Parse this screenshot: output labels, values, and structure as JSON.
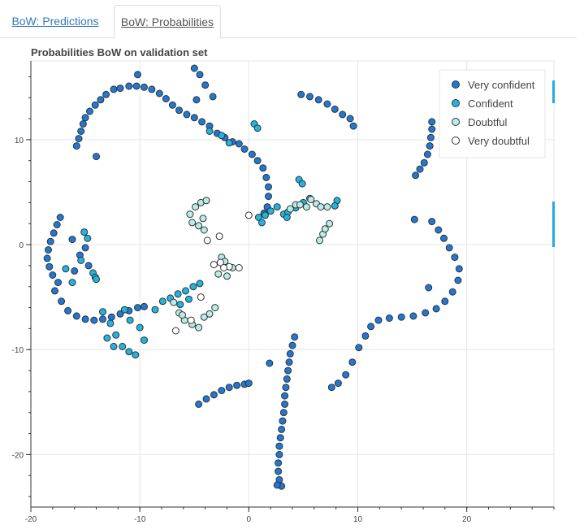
{
  "tabs": [
    {
      "label": "BoW: Predictions",
      "active": false
    },
    {
      "label": "BoW: Probabilities",
      "active": true
    }
  ],
  "chart_data": {
    "type": "scatter",
    "title": "Probabilities BoW on validation set",
    "xlabel": "",
    "ylabel": "",
    "xlim": [
      -20,
      28
    ],
    "ylim": [
      -25,
      17.5
    ],
    "xticks": [
      -20,
      -10,
      0,
      10,
      20
    ],
    "yticks": [
      -20,
      -10,
      0,
      10
    ],
    "grid": true,
    "legend_position": "top-right",
    "series": [
      {
        "name": "Very confident",
        "color": "#1f78d4",
        "points": [
          [
            -15.8,
            9.4
          ],
          [
            -15.6,
            10.1
          ],
          [
            -15.4,
            10.8
          ],
          [
            -15.2,
            11.5
          ],
          [
            -15.0,
            12.1
          ],
          [
            -14.6,
            12.7
          ],
          [
            -14.1,
            13.3
          ],
          [
            -13.6,
            13.8
          ],
          [
            -13.1,
            14.3
          ],
          [
            -12.4,
            14.8
          ],
          [
            -11.8,
            14.9
          ],
          [
            -11.0,
            15.1
          ],
          [
            -10.3,
            15.1
          ],
          [
            -9.6,
            15.0
          ],
          [
            -8.9,
            14.8
          ],
          [
            -8.2,
            14.4
          ],
          [
            -7.6,
            13.9
          ],
          [
            -7.0,
            13.3
          ],
          [
            -6.4,
            12.8
          ],
          [
            -5.7,
            12.4
          ],
          [
            -5.0,
            12.1
          ],
          [
            -4.3,
            11.7
          ],
          [
            -3.6,
            11.3
          ],
          [
            -2.9,
            10.6
          ],
          [
            -2.2,
            10.2
          ],
          [
            -1.5,
            9.8
          ],
          [
            -0.9,
            9.6
          ],
          [
            -0.4,
            9.1
          ],
          [
            0.3,
            8.6
          ],
          [
            0.8,
            8.0
          ],
          [
            1.3,
            7.3
          ],
          [
            1.6,
            6.4
          ],
          [
            1.8,
            5.5
          ],
          [
            1.8,
            4.6
          ],
          [
            1.7,
            3.6
          ],
          [
            1.4,
            3.0
          ],
          [
            -14.0,
            8.4
          ],
          [
            -10.2,
            16.2
          ],
          [
            -5.0,
            16.8
          ],
          [
            -4.5,
            16.2
          ],
          [
            -4.0,
            15.2
          ],
          [
            -3.3,
            14.1
          ],
          [
            -4.8,
            13.8
          ],
          [
            4.8,
            14.3
          ],
          [
            5.6,
            14.1
          ],
          [
            6.4,
            13.8
          ],
          [
            7.2,
            13.4
          ],
          [
            7.9,
            12.9
          ],
          [
            8.6,
            12.4
          ],
          [
            9.3,
            12.0
          ],
          [
            9.6,
            11.3
          ],
          [
            15.3,
            6.6
          ],
          [
            15.7,
            7.2
          ],
          [
            16.1,
            7.8
          ],
          [
            16.4,
            8.6
          ],
          [
            16.6,
            9.4
          ],
          [
            16.7,
            10.2
          ],
          [
            16.8,
            11.0
          ],
          [
            16.8,
            11.7
          ],
          [
            -17.3,
            2.6
          ],
          [
            -17.6,
            1.9
          ],
          [
            -17.9,
            1.1
          ],
          [
            -18.2,
            0.3
          ],
          [
            -18.4,
            -0.5
          ],
          [
            -18.5,
            -1.3
          ],
          [
            -18.3,
            -2.1
          ],
          [
            -18.0,
            -2.9
          ],
          [
            -17.5,
            -3.6
          ],
          [
            -17.8,
            -4.4
          ],
          [
            -17.2,
            -5.4
          ],
          [
            -16.6,
            -6.3
          ],
          [
            -15.8,
            -6.8
          ],
          [
            -15.0,
            -7.1
          ],
          [
            -14.2,
            -7.2
          ],
          [
            -13.4,
            -7.1
          ],
          [
            -12.6,
            -6.9
          ],
          [
            -11.8,
            -6.6
          ],
          [
            -11.0,
            -6.3
          ],
          [
            -10.2,
            -6.0
          ],
          [
            -9.6,
            -5.9
          ],
          [
            -16.2,
            0.5
          ],
          [
            -15.5,
            -1.0
          ],
          [
            -16.0,
            -2.5
          ],
          [
            -15.0,
            -0.3
          ],
          [
            -14.7,
            -2.0
          ],
          [
            15.2,
            2.4
          ],
          [
            16.8,
            2.2
          ],
          [
            17.4,
            1.4
          ],
          [
            17.9,
            0.6
          ],
          [
            18.4,
            -0.3
          ],
          [
            18.9,
            -1.2
          ],
          [
            19.3,
            -2.3
          ],
          [
            19.2,
            -3.4
          ],
          [
            18.7,
            -4.5
          ],
          [
            18.0,
            -5.4
          ],
          [
            17.2,
            -6.1
          ],
          [
            16.2,
            -6.5
          ],
          [
            15.1,
            -6.8
          ],
          [
            14.0,
            -6.9
          ],
          [
            12.9,
            -7.0
          ],
          [
            11.9,
            -7.2
          ],
          [
            11.2,
            -7.8
          ],
          [
            10.7,
            -8.7
          ],
          [
            10.1,
            -9.8
          ],
          [
            9.5,
            -11.2
          ],
          [
            8.9,
            -12.4
          ],
          [
            8.2,
            -13.2
          ],
          [
            7.6,
            -13.6
          ],
          [
            16.5,
            -4.1
          ],
          [
            -4.6,
            -15.2
          ],
          [
            -3.9,
            -14.7
          ],
          [
            -3.2,
            -14.3
          ],
          [
            -2.5,
            -13.9
          ],
          [
            -1.8,
            -13.6
          ],
          [
            -1.1,
            -13.4
          ],
          [
            -0.4,
            -13.3
          ],
          [
            0.0,
            -13.2
          ],
          [
            4.2,
            -8.8
          ],
          [
            4.0,
            -9.6
          ],
          [
            3.8,
            -10.4
          ],
          [
            3.7,
            -11.2
          ],
          [
            3.6,
            -12.0
          ],
          [
            3.5,
            -12.8
          ],
          [
            3.4,
            -13.6
          ],
          [
            3.3,
            -14.4
          ],
          [
            3.3,
            -15.2
          ],
          [
            3.2,
            -16.0
          ],
          [
            3.1,
            -16.8
          ],
          [
            3.0,
            -17.6
          ],
          [
            2.9,
            -18.4
          ],
          [
            2.8,
            -19.2
          ],
          [
            2.8,
            -20.0
          ],
          [
            2.7,
            -20.8
          ],
          [
            2.7,
            -21.6
          ],
          [
            2.8,
            -22.4
          ],
          [
            3.0,
            -23.0
          ],
          [
            2.6,
            -22.9
          ],
          [
            1.9,
            -11.3
          ]
        ]
      },
      {
        "name": "Confident",
        "color": "#20b4e0",
        "points": [
          [
            -15.1,
            1.2
          ],
          [
            -14.8,
            0.6
          ],
          [
            -15.4,
            -1.5
          ],
          [
            -14.3,
            -2.7
          ],
          [
            -16.2,
            -3.6
          ],
          [
            -14.1,
            -3.1
          ],
          [
            -16.8,
            -2.3
          ],
          [
            -14.0,
            -3.3
          ],
          [
            -13.4,
            -6.4
          ],
          [
            -12.7,
            -7.5
          ],
          [
            -12.2,
            -8.6
          ],
          [
            -11.6,
            -9.7
          ],
          [
            -11.0,
            -10.2
          ],
          [
            -10.4,
            -10.5
          ],
          [
            -9.6,
            -9.1
          ],
          [
            -10.0,
            -7.9
          ],
          [
            -10.9,
            -7.2
          ],
          [
            -11.4,
            -6.2
          ],
          [
            -12.4,
            -9.7
          ],
          [
            -13.0,
            -8.9
          ],
          [
            -8.6,
            -6.2
          ],
          [
            -7.9,
            -5.4
          ],
          [
            -7.2,
            -5.1
          ],
          [
            -6.5,
            -4.7
          ],
          [
            -5.8,
            -4.4
          ],
          [
            -5.1,
            -4.0
          ],
          [
            -4.5,
            -3.7
          ],
          [
            -6.3,
            -5.7
          ],
          [
            -5.5,
            -5.2
          ],
          [
            -3.6,
            10.8
          ],
          [
            -2.5,
            10.4
          ],
          [
            -1.8,
            9.7
          ],
          [
            0.5,
            11.5
          ],
          [
            0.8,
            11.1
          ],
          [
            0.9,
            2.6
          ],
          [
            1.5,
            2.8
          ],
          [
            2.0,
            3.2
          ],
          [
            2.6,
            3.6
          ],
          [
            1.2,
            2.1
          ],
          [
            3.2,
            2.9
          ],
          [
            3.6,
            3.1
          ],
          [
            4.3,
            3.5
          ],
          [
            5.0,
            4.0
          ],
          [
            5.6,
            4.4
          ],
          [
            4.6,
            6.2
          ],
          [
            4.9,
            5.8
          ],
          [
            8.1,
            4.2
          ],
          [
            7.9,
            3.7
          ],
          [
            3.5,
            2.6
          ]
        ]
      },
      {
        "name": "Doubtful",
        "color": "#b8ece8",
        "points": [
          [
            -5.4,
            2.9
          ],
          [
            -4.9,
            3.6
          ],
          [
            -4.4,
            4.0
          ],
          [
            -3.9,
            4.2
          ],
          [
            -5.2,
            2.1
          ],
          [
            -4.6,
            1.8
          ],
          [
            -4.1,
            1.4
          ],
          [
            -4.2,
            2.5
          ],
          [
            -2.5,
            -1.2
          ],
          [
            -2.2,
            -1.6
          ],
          [
            -1.5,
            -2.2
          ],
          [
            -2.8,
            -2.8
          ],
          [
            -2.0,
            -3.0
          ],
          [
            -6.9,
            -5.5
          ],
          [
            -6.4,
            -6.5
          ],
          [
            -5.9,
            -7.2
          ],
          [
            -5.2,
            -7.6
          ],
          [
            -4.6,
            -7.9
          ],
          [
            -4.1,
            -6.9
          ],
          [
            -3.6,
            -6.6
          ],
          [
            -3.1,
            -6.0
          ],
          [
            -6.1,
            -6.7
          ],
          [
            6.2,
            3.9
          ],
          [
            6.6,
            3.6
          ],
          [
            7.2,
            3.6
          ],
          [
            6.8,
            1.0
          ],
          [
            6.5,
            0.4
          ],
          [
            7.0,
            1.5
          ],
          [
            7.4,
            2.0
          ],
          [
            5.3,
            3.6
          ],
          [
            5.7,
            4.3
          ],
          [
            3.8,
            3.4
          ],
          [
            4.3,
            3.8
          ],
          [
            4.7,
            3.8
          ]
        ]
      },
      {
        "name": "Very doubtful",
        "color": "#ffffff",
        "points": [
          [
            -3.8,
            0.4
          ],
          [
            -2.7,
            0.8
          ],
          [
            -2.6,
            -1.7
          ],
          [
            -1.8,
            -2.1
          ],
          [
            -0.9,
            -2.2
          ],
          [
            -3.2,
            -1.9
          ],
          [
            0.0,
            2.8
          ],
          [
            -5.3,
            -7.2
          ],
          [
            -6.7,
            -8.2
          ],
          [
            -4.4,
            -5.0
          ],
          [
            -2.3,
            -2.2
          ]
        ]
      }
    ]
  }
}
